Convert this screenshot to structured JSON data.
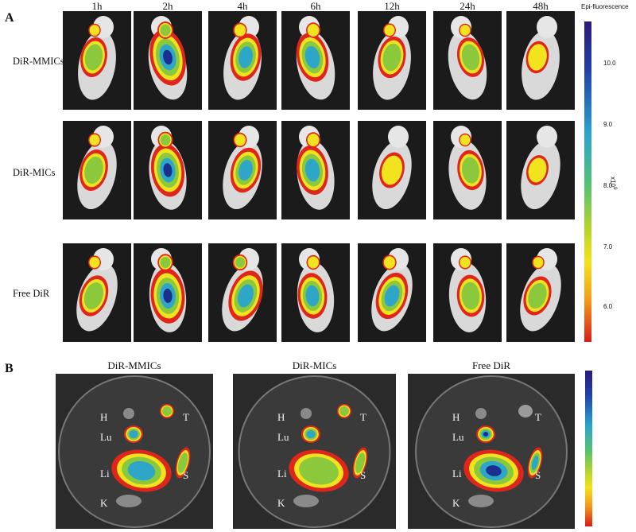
{
  "panel_a": {
    "letter": "A",
    "timepoints": [
      "1h",
      "2h",
      "4h",
      "6h",
      "12h",
      "24h",
      "48h"
    ],
    "rows": [
      {
        "label": "DiR-MMICs",
        "intensity": [
          0.55,
          1.0,
          0.75,
          0.8,
          0.6,
          0.55,
          0.35
        ]
      },
      {
        "label": "DiR-MICs",
        "intensity": [
          0.6,
          0.9,
          0.7,
          0.8,
          0.45,
          0.55,
          0.3
        ]
      },
      {
        "label": "Free DiR",
        "intensity": [
          0.6,
          0.95,
          0.85,
          0.7,
          0.75,
          0.6,
          0.55
        ]
      }
    ],
    "colorbar": {
      "title": "Epi-fluorescence",
      "ticks": [
        "10.0",
        "9.0",
        "8.0",
        "7.0",
        "6.0"
      ],
      "unit": "x10",
      "exponent": "9"
    }
  },
  "panel_b": {
    "letter": "B",
    "dishes": [
      {
        "title": "DiR-MMICs",
        "organs": [
          "H",
          "Lu",
          "Li",
          "K",
          "T",
          "S"
        ]
      },
      {
        "title": "DiR-MICs",
        "organs": [
          "H",
          "Lu",
          "Li",
          "K",
          "T",
          "S"
        ]
      },
      {
        "title": "Free DiR",
        "organs": [
          "H",
          "Lu",
          "Li",
          "K",
          "T",
          "S"
        ]
      }
    ]
  },
  "colors": {
    "high": "#1b2f8f",
    "mid_high": "#2ea6c8",
    "mid": "#8cc83c",
    "mid_low": "#f2e31f",
    "low": "#e0261b",
    "background_tile": "#1b1b1b"
  }
}
